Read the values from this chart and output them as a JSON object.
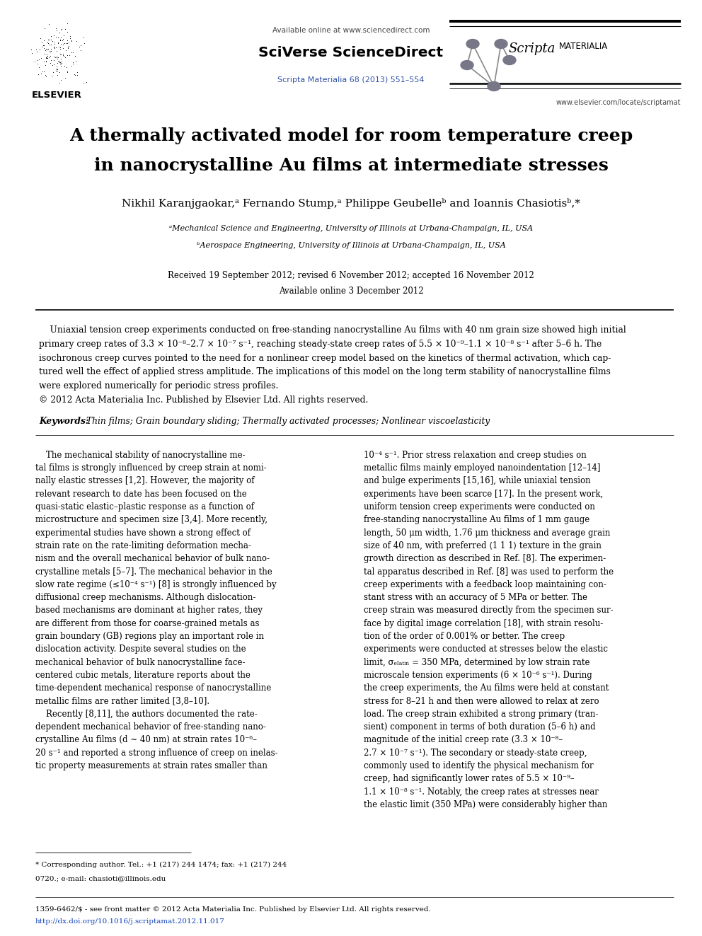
{
  "bg_color": "#ffffff",
  "page_width": 9.92,
  "page_height": 13.23,
  "header": {
    "available_online": "Available online at www.sciencedirect.com",
    "sciverse_text": "SciVerse ScienceDirect",
    "journal_ref": "Scripta Materialia 68 (2013) 551–554",
    "scripta_italic": "Scripta",
    "materialia_caps": "MATERIALIA",
    "url": "www.elsevier.com/locate/scriptamat",
    "elsevier_label": "ELSEVIER"
  },
  "title_line1": "A thermally activated model for room temperature creep",
  "title_line2": "in nanocrystalline Au films at intermediate stresses",
  "authors_main": "Nikhil Karanjgaokar,",
  "authors_full": "Nikhil Karanjgaokar,ᵃ Fernando Stump,ᵃ Philippe Geubelleᵇ and Ioannis Chasiotisᵇ,*",
  "affiliations": [
    "ᵃMechanical Science and Engineering, University of Illinois at Urbana-Champaign, IL, USA",
    "ᵇAerospace Engineering, University of Illinois at Urbana-Champaign, IL, USA"
  ],
  "date_line1": "Received 19 September 2012; revised 6 November 2012; accepted 16 November 2012",
  "date_line2": "Available online 3 December 2012",
  "abstract_lines": [
    "    Uniaxial tension creep experiments conducted on free-standing nanocrystalline Au films with 40 nm grain size showed high initial",
    "primary creep rates of 3.3 × 10⁻⁸–2.7 × 10⁻⁷ s⁻¹, reaching steady-state creep rates of 5.5 × 10⁻⁹–1.1 × 10⁻⁸ s⁻¹ after 5–6 h. The",
    "isochronous creep curves pointed to the need for a nonlinear creep model based on the kinetics of thermal activation, which cap-",
    "tured well the effect of applied stress amplitude. The implications of this model on the long term stability of nanocrystalline films",
    "were explored numerically for periodic stress profiles.",
    "© 2012 Acta Materialia Inc. Published by Elsevier Ltd. All rights reserved."
  ],
  "keywords_label": "Keywords:",
  "keywords_text": "Thin films; Grain boundary sliding; Thermally activated processes; Nonlinear viscoelasticity",
  "body_col1": [
    "    The mechanical stability of nanocrystalline me-",
    "tal films is strongly influenced by creep strain at nomi-",
    "nally elastic stresses [1,2]. However, the majority of",
    "relevant research to date has been focused on the",
    "quasi-static elastic–plastic response as a function of",
    "microstructure and specimen size [3,4]. More recently,",
    "experimental studies have shown a strong effect of",
    "strain rate on the rate-limiting deformation mecha-",
    "nism and the overall mechanical behavior of bulk nano-",
    "crystalline metals [5–7]. The mechanical behavior in the",
    "slow rate regime (≤10⁻⁴ s⁻¹) [8] is strongly influenced by",
    "diffusional creep mechanisms. Although dislocation-",
    "based mechanisms are dominant at higher rates, they",
    "are different from those for coarse-grained metals as",
    "grain boundary (GB) regions play an important role in",
    "dislocation activity. Despite several studies on the",
    "mechanical behavior of bulk nanocrystalline face-",
    "centered cubic metals, literature reports about the",
    "time-dependent mechanical response of nanocrystalline",
    "metallic films are rather limited [3,8–10].",
    "    Recently [8,11], the authors documented the rate-",
    "dependent mechanical behavior of free-standing nano-",
    "crystalline Au films (d ∼ 40 nm) at strain rates 10⁻⁶–",
    "20 s⁻¹ and reported a strong influence of creep on inelas-",
    "tic property measurements at strain rates smaller than"
  ],
  "body_col2": [
    "10⁻⁴ s⁻¹. Prior stress relaxation and creep studies on",
    "metallic films mainly employed nanoindentation [12–14]",
    "and bulge experiments [15,16], while uniaxial tension",
    "experiments have been scarce [17]. In the present work,",
    "uniform tension creep experiments were conducted on",
    "free-standing nanocrystalline Au films of 1 mm gauge",
    "length, 50 μm width, 1.76 μm thickness and average grain",
    "size of 40 nm, with preferred ⟨1 1 1⟩ texture in the grain",
    "growth direction as described in Ref. [8]. The experimen-",
    "tal apparatus described in Ref. [8] was used to perform the",
    "creep experiments with a feedback loop maintaining con-",
    "stant stress with an accuracy of 5 MPa or better. The",
    "creep strain was measured directly from the specimen sur-",
    "face by digital image correlation [18], with strain resolu-",
    "tion of the order of 0.001% or better. The creep",
    "experiments were conducted at stresses below the elastic",
    "limit, σₑₗₐₜᵢₙ = 350 MPa, determined by low strain rate",
    "microscale tension experiments (6 × 10⁻⁶ s⁻¹). During",
    "the creep experiments, the Au films were held at constant",
    "stress for 8–21 h and then were allowed to relax at zero",
    "load. The creep strain exhibited a strong primary (tran-",
    "sient) component in terms of both duration (5–6 h) and",
    "magnitude of the initial creep rate (3.3 × 10⁻⁸–",
    "2.7 × 10⁻⁷ s⁻¹). The secondary or steady-state creep,",
    "commonly used to identify the physical mechanism for",
    "creep, had significantly lower rates of 5.5 × 10⁻⁹–",
    "1.1 × 10⁻⁸ s⁻¹. Notably, the creep rates at stresses near",
    "the elastic limit (350 MPa) were considerably higher than"
  ],
  "footnote_line1": "* Corresponding author. Tel.: +1 (217) 244 1474; fax: +1 (217) 244",
  "footnote_line2": "0720.; e-mail: chasioti@illinois.edu",
  "footer_text": "1359-6462/$ - see front matter © 2012 Acta Materialia Inc. Published by Elsevier Ltd. All rights reserved.",
  "footer_doi": "http://dx.doi.org/10.1016/j.scriptamat.2012.11.017",
  "colors": {
    "black": "#000000",
    "blue_link": "#3355aa",
    "blue_doi": "#1144bb",
    "gray_text": "#444444",
    "gray_light": "#777777"
  }
}
